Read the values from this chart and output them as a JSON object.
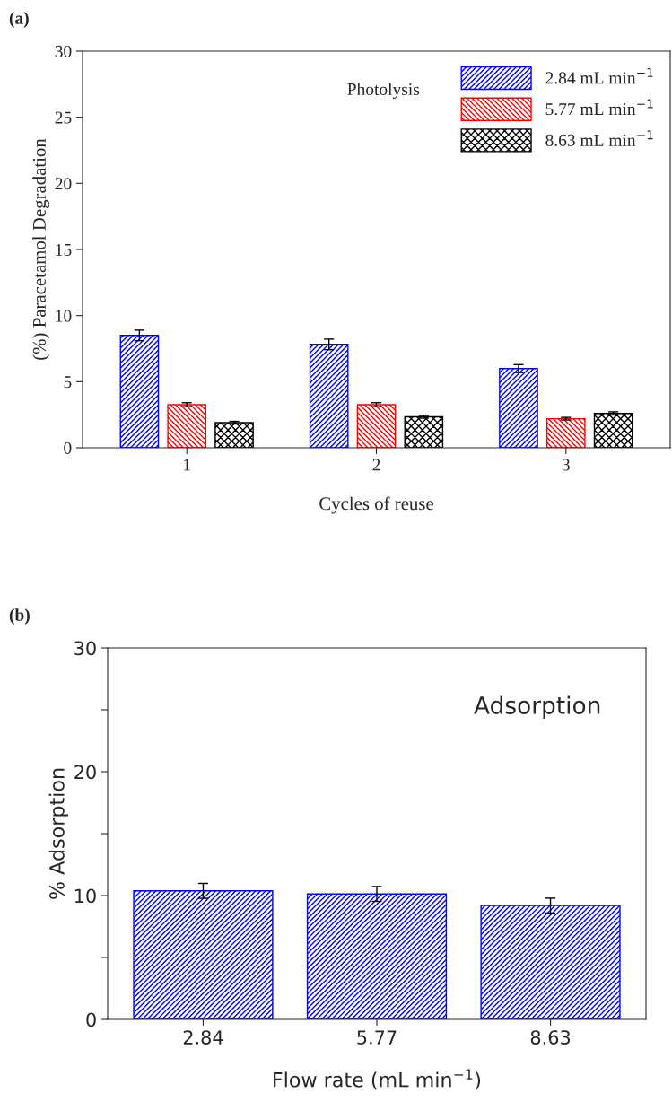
{
  "chart_data": [
    {
      "type": "bar",
      "annotations": [
        "(a)",
        "Photolysis"
      ],
      "xlabel": "Cycles of reuse",
      "ylabel": "(%) Paracetamol Degradation",
      "categories": [
        "1",
        "2",
        "3"
      ],
      "ylim": [
        0,
        30
      ],
      "yticks": [
        0,
        5,
        10,
        15,
        20,
        25,
        30
      ],
      "legend": "top right",
      "series": [
        {
          "name": "2.84 mL min$^{−1}$",
          "color": "#0000ff",
          "values": [
            8.5,
            7.82,
            5.99
          ],
          "errors": [
            0.4,
            0.4,
            0.3
          ]
        },
        {
          "name": "5.77 mL min$^{−1}$",
          "color": "#ff0000",
          "values": [
            3.26,
            3.26,
            2.2
          ],
          "errors": [
            0.15,
            0.15,
            0.1
          ]
        },
        {
          "name": "8.63 mL min$^{−1}$",
          "color": "#000000",
          "values": [
            1.9,
            2.34,
            2.6
          ],
          "errors": [
            0.1,
            0.1,
            0.12
          ]
        }
      ]
    },
    {
      "type": "bar",
      "annotations": [
        "(b)",
        "Adsorption"
      ],
      "xlabel": "Flow rate (mL min$^{−1}$)",
      "ylabel": "% Adsorption",
      "categories": [
        "2.84",
        "5.77",
        "8.63"
      ],
      "ylim": [
        0,
        30
      ],
      "yticks": [
        0,
        {
          "value": 5,
          "label": null
        },
        10,
        {
          "value": 15,
          "label": null
        },
        20,
        {
          "value": 25,
          "label": null
        },
        30
      ],
      "series": [
        {
          "color": "#0000ff",
          "values": [
            10.38,
            10.13,
            9.19
          ],
          "errors": [
            0.6,
            0.6,
            0.6
          ]
        }
      ]
    }
  ]
}
